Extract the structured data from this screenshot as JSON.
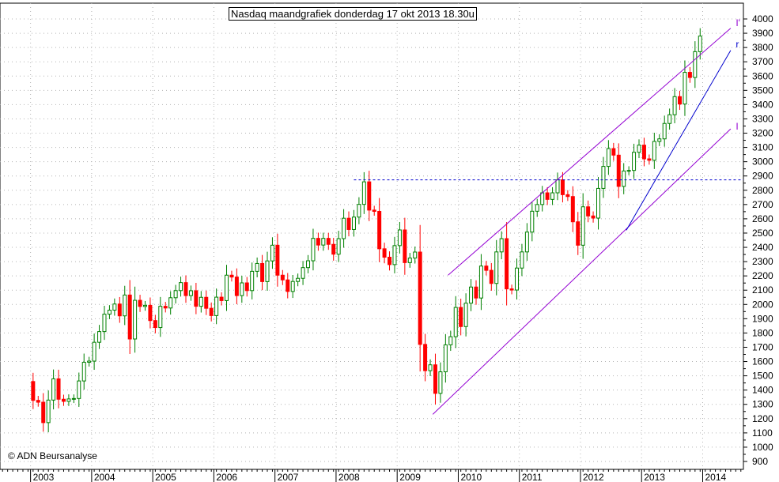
{
  "chart_data": {
    "type": "candlestick",
    "title": "Nasdaq maandgrafiek donderdag 17 okt 2013 18.30u",
    "copyright": "© ADN Beursanalyse",
    "y_range": [
      900,
      4000
    ],
    "y_ticks": [
      900,
      1000,
      1100,
      1200,
      1300,
      1400,
      1500,
      1600,
      1700,
      1800,
      1900,
      2000,
      2100,
      2200,
      2300,
      2400,
      2500,
      2600,
      2700,
      2800,
      2900,
      3000,
      3100,
      3200,
      3300,
      3400,
      3500,
      3600,
      3700,
      3800,
      3900,
      4000
    ],
    "x_labels": [
      "2003",
      "2004",
      "2005",
      "2006",
      "2007",
      "2008",
      "2009",
      "2010",
      "2011",
      "2012",
      "2013",
      "2014"
    ],
    "x_label_months": [
      0,
      12,
      24,
      36,
      48,
      60,
      72,
      84,
      96,
      108,
      120,
      132
    ],
    "x_month_range": [
      -6.5,
      139.5
    ],
    "grid": true,
    "colors": {
      "up": "#008000",
      "down": "#ff0000",
      "channel": "#9400d3",
      "trendline": "#0000cd",
      "resistance": "#0000cd",
      "grid": "#b4b4b4"
    },
    "candles_start": "2002-07",
    "closes": [
      1328,
      1315,
      1172,
      1330,
      1479,
      1336,
      1321,
      1338,
      1341,
      1464,
      1595,
      1603,
      1735,
      1810,
      1932,
      1960,
      2003,
      1920,
      2066,
      1758,
      2029,
      1986,
      1994,
      1887,
      1838,
      1987,
      1975,
      2047,
      2097,
      2153,
      2062,
      2096,
      1987,
      2050,
      1973,
      1922,
      2051,
      2027,
      2205,
      2192,
      2062,
      2151,
      2097,
      2232,
      2287,
      2160,
      2305,
      2415,
      2205,
      2172,
      2091,
      2161,
      2183,
      2258,
      2306,
      2463,
      2416,
      2463,
      2421,
      2352,
      2461,
      2604,
      2525,
      2612,
      2701,
      2859,
      2661,
      2652,
      2390,
      2331,
      2279,
      2412,
      2522,
      2293,
      2325,
      2367,
      1720,
      1536,
      1577,
      1377,
      1528,
      1717,
      1774,
      1979,
      1845,
      2009,
      2122,
      2045,
      2269,
      2239,
      2147,
      2368,
      2461,
      2109,
      2101,
      2255,
      2368,
      2507,
      2653,
      2700,
      2782,
      2736,
      2782,
      2873,
      2769,
      2756,
      2579,
      2415,
      2684,
      2620,
      2605,
      2813,
      2967,
      3092,
      3046,
      2827,
      2935,
      2939,
      3066,
      3116,
      3020,
      3010,
      3142,
      3160,
      3268,
      3329,
      3456,
      3404,
      3626,
      3590,
      3771,
      3880
    ],
    "lines": {
      "resistance_level": 2873,
      "channel_top": [
        [
          81.5,
          2205
        ],
        [
          137,
          3935
        ]
      ],
      "channel_bottom": [
        [
          78.5,
          1230
        ],
        [
          137,
          3230
        ]
      ],
      "trendline_r": [
        [
          116.5,
          2520
        ],
        [
          137,
          3780
        ]
      ]
    },
    "line_labels": {
      "channel_top": "I'",
      "trendline_r": "r",
      "channel_bottom": "I"
    }
  }
}
